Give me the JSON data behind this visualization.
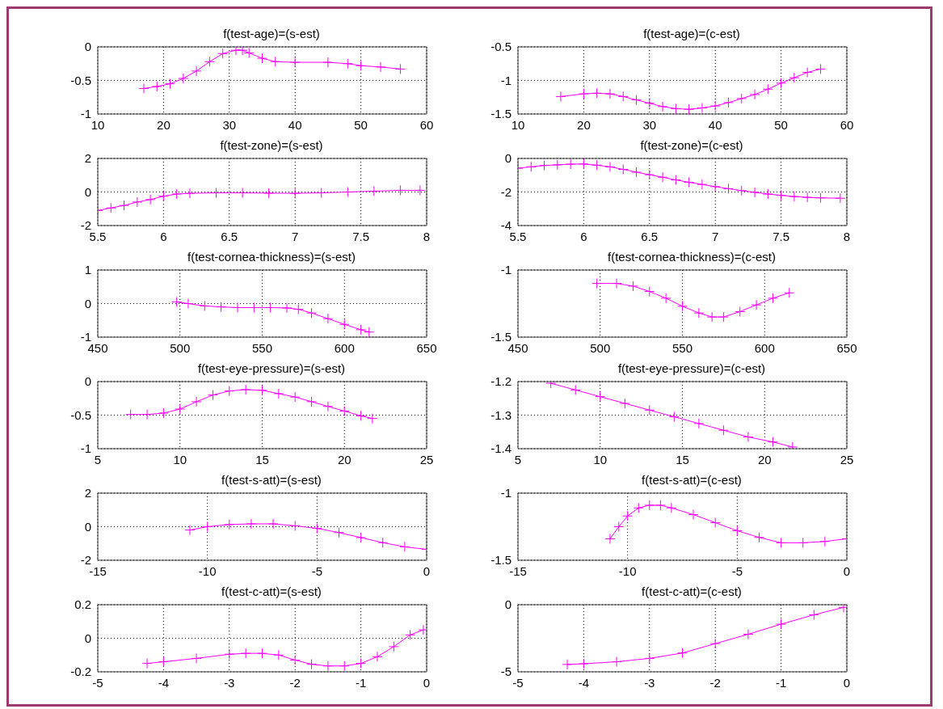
{
  "chart_data": [
    {
      "type": "line",
      "title": "f(test-age)=(s-est)",
      "color": "#ff00ff",
      "marker": "cross",
      "line_style": "solid",
      "grid": true,
      "xlim": [
        10,
        60
      ],
      "xticks": [
        10,
        20,
        30,
        40,
        50,
        60
      ],
      "ylim": [
        -1,
        0
      ],
      "yticks": [
        -1,
        -0.5,
        0
      ],
      "x": [
        17,
        19,
        21,
        23,
        25,
        27,
        29,
        31,
        32,
        33,
        35,
        37,
        40,
        45,
        48,
        50,
        53,
        56
      ],
      "values": [
        -0.62,
        -0.59,
        -0.55,
        -0.47,
        -0.36,
        -0.22,
        -0.1,
        -0.05,
        -0.05,
        -0.09,
        -0.17,
        -0.22,
        -0.23,
        -0.23,
        -0.25,
        -0.28,
        -0.3,
        -0.33
      ]
    },
    {
      "type": "line",
      "title": "f(test-age)=(c-est)",
      "color": "#ff00ff",
      "marker": "cross",
      "line_style": "solid",
      "grid": true,
      "xlim": [
        10,
        60
      ],
      "xticks": [
        10,
        20,
        30,
        40,
        50,
        60
      ],
      "ylim": [
        -1.5,
        -0.5
      ],
      "yticks": [
        -1.5,
        -1,
        -0.5
      ],
      "x": [
        16.5,
        20,
        22,
        24,
        26,
        28,
        30,
        32,
        34,
        36,
        38,
        40,
        42,
        44,
        46,
        48,
        50,
        52,
        54,
        56
      ],
      "values": [
        -1.24,
        -1.2,
        -1.19,
        -1.2,
        -1.24,
        -1.29,
        -1.34,
        -1.39,
        -1.42,
        -1.43,
        -1.41,
        -1.38,
        -1.33,
        -1.27,
        -1.21,
        -1.13,
        -1.04,
        -0.96,
        -0.88,
        -0.83
      ]
    },
    {
      "type": "line",
      "title": "f(test-zone)=(s-est)",
      "color": "#ff00ff",
      "marker": "cross",
      "line_style": "solid",
      "grid": true,
      "xlim": [
        5.5,
        8
      ],
      "xticks": [
        5.5,
        6,
        6.5,
        7,
        7.5,
        8
      ],
      "ylim": [
        -2,
        2
      ],
      "yticks": [
        -2,
        0,
        2
      ],
      "x": [
        5.5,
        5.6,
        5.7,
        5.8,
        5.9,
        6,
        6.1,
        6.2,
        6.4,
        6.6,
        6.8,
        7,
        7.2,
        7.4,
        7.6,
        7.8,
        7.95
      ],
      "values": [
        -1.1,
        -0.95,
        -0.8,
        -0.6,
        -0.45,
        -0.25,
        -0.12,
        -0.08,
        -0.05,
        -0.05,
        -0.07,
        -0.08,
        -0.05,
        0,
        0.05,
        0.1,
        0.1
      ]
    },
    {
      "type": "line",
      "title": "f(test-zone)=(c-est)",
      "color": "#ff00ff",
      "marker": "cross",
      "line_style": "solid",
      "grid": true,
      "xlim": [
        5.5,
        8
      ],
      "xticks": [
        5.5,
        6,
        6.5,
        7,
        7.5,
        8
      ],
      "ylim": [
        -4,
        0
      ],
      "yticks": [
        -4,
        -2,
        0
      ],
      "x": [
        5.5,
        5.6,
        5.7,
        5.8,
        5.9,
        6,
        6.1,
        6.2,
        6.3,
        6.4,
        6.5,
        6.6,
        6.7,
        6.8,
        6.9,
        7,
        7.1,
        7.2,
        7.3,
        7.4,
        7.5,
        7.6,
        7.7,
        7.8,
        7.95
      ],
      "values": [
        -0.58,
        -0.5,
        -0.42,
        -0.38,
        -0.34,
        -0.33,
        -0.4,
        -0.5,
        -0.65,
        -0.82,
        -0.97,
        -1.12,
        -1.28,
        -1.42,
        -1.55,
        -1.68,
        -1.8,
        -1.92,
        -2.02,
        -2.12,
        -2.2,
        -2.27,
        -2.32,
        -2.35,
        -2.37
      ]
    },
    {
      "type": "line",
      "title": "f(test-cornea-thickness)=(s-est)",
      "color": "#ff00ff",
      "marker": "cross",
      "line_style": "solid",
      "grid": true,
      "xlim": [
        450,
        650
      ],
      "xticks": [
        450,
        500,
        550,
        600,
        650
      ],
      "ylim": [
        -1,
        1
      ],
      "yticks": [
        -1,
        0,
        1
      ],
      "x": [
        498,
        505,
        515,
        525,
        535,
        545,
        555,
        565,
        572,
        580,
        590,
        600,
        610,
        615
      ],
      "values": [
        0.05,
        0,
        -0.07,
        -0.1,
        -0.12,
        -0.12,
        -0.12,
        -0.13,
        -0.17,
        -0.28,
        -0.45,
        -0.62,
        -0.78,
        -0.85
      ]
    },
    {
      "type": "line",
      "title": "f(test-cornea-thickness)=(c-est)",
      "color": "#ff00ff",
      "marker": "cross",
      "line_style": "solid",
      "grid": true,
      "xlim": [
        450,
        650
      ],
      "xticks": [
        450,
        500,
        550,
        600,
        650
      ],
      "ylim": [
        -1.5,
        -1
      ],
      "yticks": [
        -1.5,
        -1
      ],
      "x": [
        498,
        510,
        520,
        530,
        540,
        550,
        560,
        568,
        575,
        585,
        595,
        605,
        615
      ],
      "values": [
        -1.1,
        -1.1,
        -1.12,
        -1.16,
        -1.21,
        -1.27,
        -1.32,
        -1.35,
        -1.35,
        -1.31,
        -1.26,
        -1.21,
        -1.17
      ]
    },
    {
      "type": "line",
      "title": "f(test-eye-pressure)=(s-est)",
      "color": "#ff00ff",
      "marker": "cross",
      "line_style": "solid",
      "grid": true,
      "xlim": [
        5,
        25
      ],
      "xticks": [
        5,
        10,
        15,
        20,
        25
      ],
      "ylim": [
        -1,
        0
      ],
      "yticks": [
        -1,
        -0.5,
        0
      ],
      "x": [
        7,
        8,
        9,
        10,
        11,
        12,
        13,
        14,
        15,
        16,
        17,
        18,
        19,
        20,
        21,
        21.7
      ],
      "values": [
        -0.49,
        -0.49,
        -0.47,
        -0.41,
        -0.3,
        -0.2,
        -0.14,
        -0.12,
        -0.13,
        -0.18,
        -0.23,
        -0.3,
        -0.37,
        -0.44,
        -0.51,
        -0.55
      ]
    },
    {
      "type": "line",
      "title": "f(test-eye-pressure)=(c-est)",
      "color": "#ff00ff",
      "marker": "cross",
      "line_style": "solid",
      "grid": true,
      "xlim": [
        5,
        25
      ],
      "xticks": [
        5,
        10,
        15,
        20,
        25
      ],
      "ylim": [
        -1.4,
        -1.2
      ],
      "yticks": [
        -1.4,
        -1.3,
        -1.2
      ],
      "x": [
        7,
        8.5,
        10,
        11.5,
        13,
        14.5,
        16,
        17.5,
        19,
        20.5,
        21.7
      ],
      "values": [
        -1.205,
        -1.225,
        -1.245,
        -1.265,
        -1.285,
        -1.305,
        -1.325,
        -1.345,
        -1.365,
        -1.38,
        -1.395
      ]
    },
    {
      "type": "line",
      "title": "f(test-s-att)=(s-est)",
      "color": "#ff00ff",
      "marker": "cross",
      "line_style": "solid",
      "grid": true,
      "xlim": [
        -15,
        0
      ],
      "xticks": [
        -15,
        -10,
        -5,
        0
      ],
      "ylim": [
        -2,
        2
      ],
      "yticks": [
        -2,
        0,
        2
      ],
      "x": [
        -10.8,
        -10,
        -9,
        -8,
        -7,
        -6,
        -5,
        -4,
        -3,
        -2,
        -1,
        0
      ],
      "values": [
        -0.2,
        0,
        0.13,
        0.17,
        0.17,
        0.05,
        -0.1,
        -0.35,
        -0.65,
        -0.95,
        -1.2,
        -1.35
      ]
    },
    {
      "type": "line",
      "title": "f(test-s-att)=(c-est)",
      "color": "#ff00ff",
      "marker": "cross",
      "line_style": "solid",
      "grid": true,
      "xlim": [
        -15,
        0
      ],
      "xticks": [
        -15,
        -10,
        -5,
        0
      ],
      "ylim": [
        -1.5,
        -1
      ],
      "yticks": [
        -1.5,
        -1
      ],
      "x": [
        -10.8,
        -10.4,
        -10,
        -9.5,
        -9,
        -8.5,
        -8,
        -7,
        -6,
        -5,
        -4,
        -3,
        -2,
        -1,
        0
      ],
      "values": [
        -1.34,
        -1.25,
        -1.17,
        -1.11,
        -1.09,
        -1.09,
        -1.11,
        -1.16,
        -1.22,
        -1.28,
        -1.33,
        -1.37,
        -1.37,
        -1.36,
        -1.34
      ]
    },
    {
      "type": "line",
      "title": "f(test-c-att)=(s-est)",
      "color": "#ff00ff",
      "marker": "cross",
      "line_style": "solid",
      "grid": true,
      "xlim": [
        -5,
        0
      ],
      "xticks": [
        -5,
        -4,
        -3,
        -2,
        -1,
        0
      ],
      "ylim": [
        -0.2,
        0.2
      ],
      "yticks": [
        -0.2,
        0,
        0.2
      ],
      "x": [
        -4.25,
        -4,
        -3.5,
        -3,
        -2.75,
        -2.5,
        -2.25,
        -2,
        -1.75,
        -1.5,
        -1.25,
        -1,
        -0.75,
        -0.5,
        -0.25,
        -0.05
      ],
      "values": [
        -0.15,
        -0.14,
        -0.12,
        -0.095,
        -0.09,
        -0.09,
        -0.1,
        -0.13,
        -0.155,
        -0.165,
        -0.165,
        -0.15,
        -0.11,
        -0.05,
        0.02,
        0.05
      ]
    },
    {
      "type": "line",
      "title": "f(test-c-att)=(c-est)",
      "color": "#ff00ff",
      "marker": "cross",
      "line_style": "solid",
      "grid": true,
      "xlim": [
        -5,
        0
      ],
      "xticks": [
        -5,
        -4,
        -3,
        -2,
        -1,
        0
      ],
      "ylim": [
        -5,
        0
      ],
      "yticks": [
        -5,
        0
      ],
      "x": [
        -4.25,
        -4,
        -3.5,
        -3,
        -2.5,
        -2,
        -1.5,
        -1,
        -0.5,
        -0.05
      ],
      "values": [
        -4.45,
        -4.4,
        -4.25,
        -4,
        -3.6,
        -2.9,
        -2.2,
        -1.45,
        -0.75,
        -0.2
      ]
    }
  ]
}
